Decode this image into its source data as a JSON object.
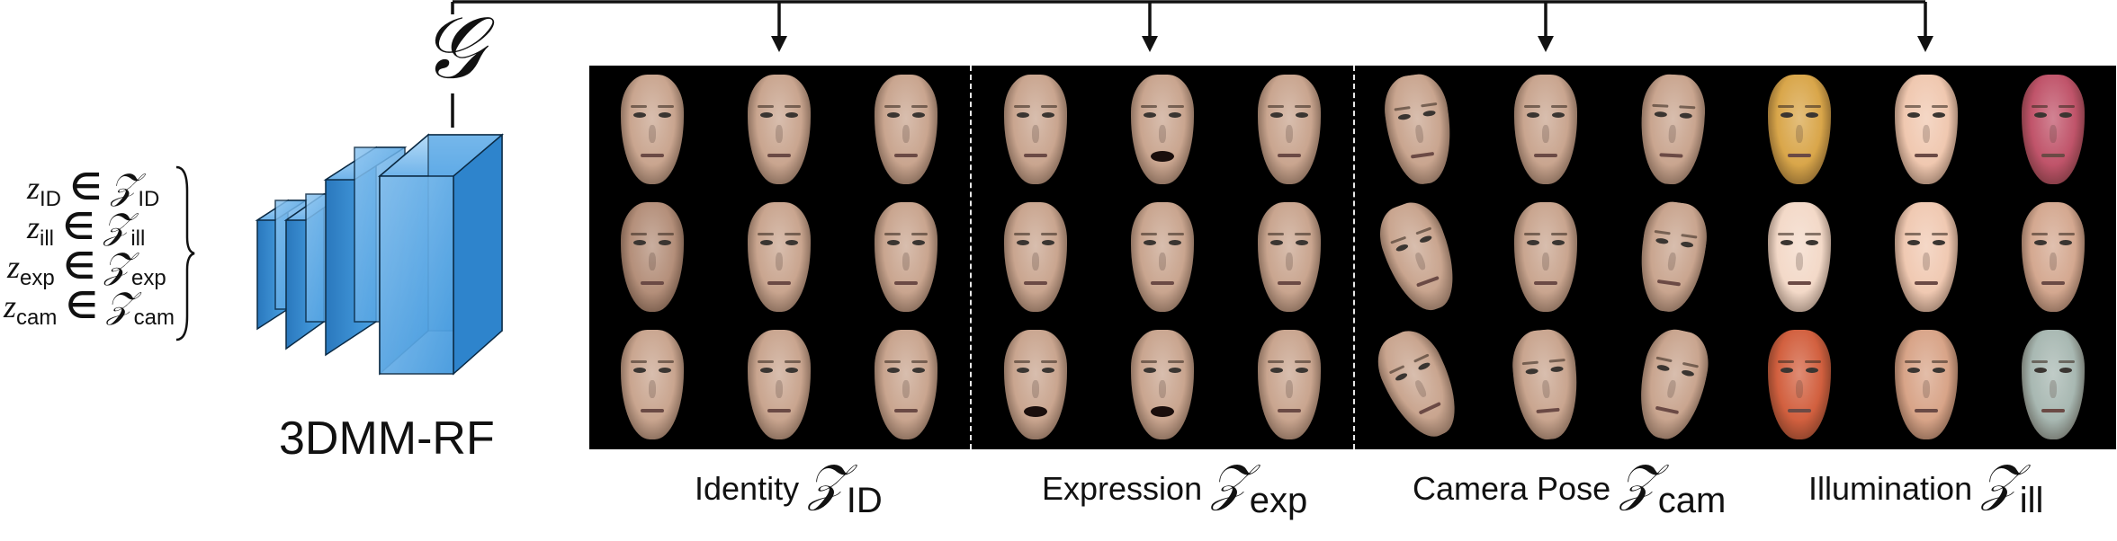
{
  "generator_symbol": "𝒢",
  "latents": [
    {
      "z": "z",
      "sub": "ID",
      "in": "∈",
      "space": "𝒵",
      "space_sub": "ID"
    },
    {
      "z": "z",
      "sub": "ill",
      "in": "∈",
      "space": "𝒵",
      "space_sub": "ill"
    },
    {
      "z": "z",
      "sub": "exp",
      "in": "∈",
      "space": "𝒵",
      "space_sub": "exp"
    },
    {
      "z": "z",
      "sub": "cam",
      "in": "∈",
      "space": "𝒵",
      "space_sub": "cam"
    }
  ],
  "model_label": "3DMM-RF",
  "groups": [
    {
      "label": "Identity",
      "symbol": "𝒵",
      "sub": "ID"
    },
    {
      "label": "Expression",
      "symbol": "𝒵",
      "sub": "exp"
    },
    {
      "label": "Camera Pose",
      "symbol": "𝒵",
      "sub": "cam"
    },
    {
      "label": "Illumination",
      "symbol": "𝒵",
      "sub": "ill"
    }
  ],
  "colors": {
    "ink": "#111111",
    "panel_bg": "#000000",
    "cube_face": "#3f97dd",
    "cube_edge": "#0b2a44",
    "skin": "#c9a58f",
    "divider": "#e8e8e8"
  }
}
